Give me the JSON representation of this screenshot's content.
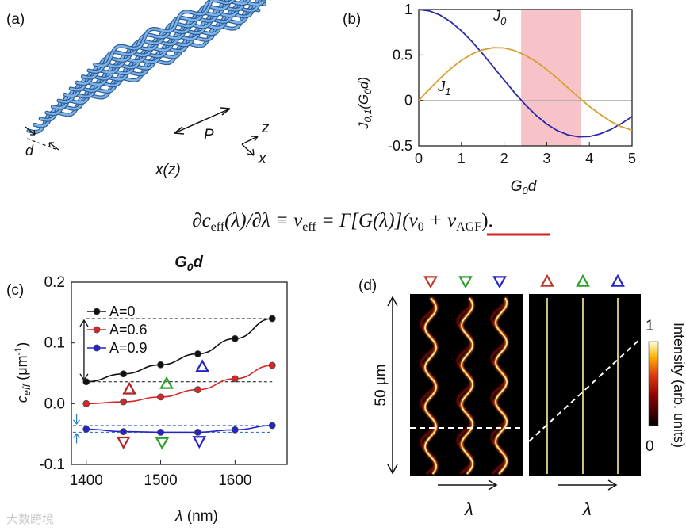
{
  "panel_a": {
    "label": "(a)",
    "d_label": "d",
    "p_label": "P",
    "z_label": "z",
    "x_label": "x",
    "xz_label": "x(z)"
  },
  "equation": {
    "text": "∂c_eff(λ)/∂λ ≡ ν_eff = Γ[G(λ)](ν_0 + ν_AGF).",
    "lhs": "∂c",
    "eff1": "eff",
    "mid1": "(λ)/∂λ ≡ ν",
    "eff2": "eff",
    "mid2": " = Γ[G(λ)](ν",
    "zero": "0",
    "plus": " + ν",
    "agf": "AGF",
    "end": ")."
  },
  "chart_data": [
    {
      "panel": "(b)",
      "type": "line",
      "title": "",
      "xlabel": "G0d",
      "ylabel": "J0,1(G0d)",
      "xlim": [
        0,
        5
      ],
      "ylim": [
        -0.5,
        1
      ],
      "xticks": [
        "0",
        "1",
        "2",
        "3",
        "4",
        "5"
      ],
      "yticks": [
        "-0.5",
        "0",
        "0.5",
        "1"
      ],
      "highlight_band": [
        2.4,
        3.8
      ],
      "series": [
        {
          "name": "J0",
          "label_main": "J",
          "label_sub": "0",
          "color": "#2a2aa8",
          "x": [
            0,
            0.25,
            0.5,
            0.75,
            1,
            1.25,
            1.5,
            1.75,
            2,
            2.25,
            2.5,
            2.75,
            3,
            3.25,
            3.5,
            3.75,
            4,
            4.25,
            4.5,
            4.75,
            5
          ],
          "values": [
            1,
            0.984,
            0.938,
            0.864,
            0.765,
            0.646,
            0.512,
            0.369,
            0.224,
            0.083,
            -0.048,
            -0.164,
            -0.26,
            -0.334,
            -0.38,
            -0.401,
            -0.397,
            -0.369,
            -0.321,
            -0.255,
            -0.178
          ]
        },
        {
          "name": "J1",
          "label_main": "J",
          "label_sub": "1",
          "color": "#d4a030",
          "x": [
            0,
            0.25,
            0.5,
            0.75,
            1,
            1.25,
            1.5,
            1.75,
            2,
            2.25,
            2.5,
            2.75,
            3,
            3.25,
            3.5,
            3.75,
            4,
            4.25,
            4.5,
            4.75,
            5
          ],
          "values": [
            0,
            0.124,
            0.242,
            0.349,
            0.44,
            0.511,
            0.558,
            0.58,
            0.577,
            0.548,
            0.497,
            0.426,
            0.339,
            0.241,
            0.137,
            0.032,
            -0.066,
            -0.152,
            -0.231,
            -0.29,
            -0.328
          ]
        }
      ]
    },
    {
      "panel": "(c)",
      "type": "line",
      "title": "G0d",
      "xlabel": "λ (nm)",
      "ylabel": "ceff (μm-1)",
      "xlim": [
        1380,
        1670
      ],
      "ylim": [
        -0.1,
        0.2
      ],
      "xticks": [
        "1400",
        "1500",
        "1600"
      ],
      "yticks": [
        "-0.1",
        "0.0",
        "0.1",
        "0.2"
      ],
      "x": [
        1400,
        1450,
        1500,
        1550,
        1600,
        1650
      ],
      "series": [
        {
          "name": "A=0",
          "color": "#111111",
          "values": [
            0.036,
            0.049,
            0.064,
            0.082,
            0.107,
            0.14
          ]
        },
        {
          "name": "A=0.6",
          "color": "#d62728",
          "values": [
            0.0,
            0.003,
            0.011,
            0.023,
            0.041,
            0.063
          ]
        },
        {
          "name": "A=0.9",
          "color": "#2424c8",
          "values": [
            -0.042,
            -0.046,
            -0.047,
            -0.047,
            -0.043,
            -0.036
          ]
        }
      ],
      "markers": [
        {
          "shape": "up",
          "color": "#b22222",
          "x": 1458,
          "y": 0.024
        },
        {
          "shape": "up",
          "color": "#2ca02c",
          "x": 1508,
          "y": 0.033
        },
        {
          "shape": "up",
          "color": "#2424c8",
          "x": 1556,
          "y": 0.061
        },
        {
          "shape": "down",
          "color": "#b22222",
          "x": 1450,
          "y": -0.063
        },
        {
          "shape": "down",
          "color": "#2ca02c",
          "x": 1502,
          "y": -0.064
        },
        {
          "shape": "down",
          "color": "#2424c8",
          "x": 1552,
          "y": -0.062
        }
      ]
    }
  ],
  "panel_d": {
    "label": "(d)",
    "scale_label": "50 μm",
    "lambda_label": "λ",
    "colorbar_title": "Intensity (arb. units)",
    "colorbar_max": "1",
    "colorbar_min": "0",
    "colors": {
      "down_red": "#c0392b",
      "down_green": "#2ca02c",
      "down_blue": "#2424c8"
    }
  },
  "watermark": "大数跨境"
}
